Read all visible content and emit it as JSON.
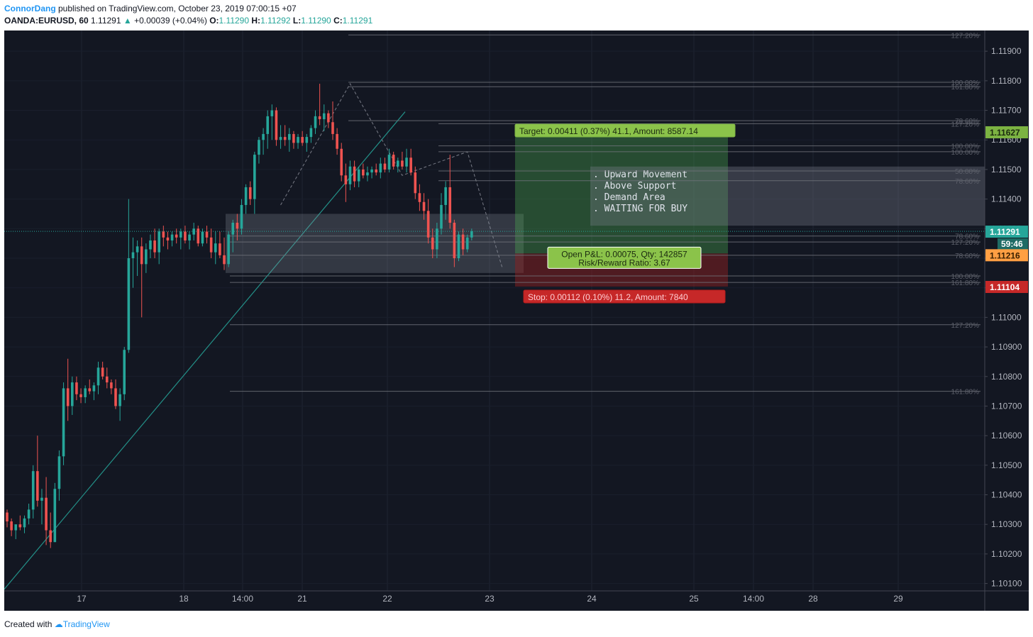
{
  "header": {
    "author": "ConnorDang",
    "published_text": "published on TradingView.com, October 23, 2019 07:00:15 +07",
    "symbol": "OANDA:EURUSD, 60",
    "last": "1.11291",
    "change": "+0.00039 (+0.04%)",
    "open_label": "O:",
    "open": "1.11290",
    "high_label": "H:",
    "high": "1.11292",
    "low_label": "L:",
    "low": "1.11290",
    "close_label": "C:",
    "close": "1.11291"
  },
  "footer": {
    "created_with": "Created with",
    "brand": "TradingView"
  },
  "colors": {
    "background": "#131722",
    "up": "#26a69a",
    "down": "#ef5350",
    "target_zone": "#4caf50",
    "stop_zone": "#8b1f1f",
    "grid_line": "#6f727a",
    "price_label_current": "#26a69a",
    "price_label_target": "#7cb342",
    "price_label_entry": "#ff9f43",
    "price_label_stop": "#c62828"
  },
  "chart_data": {
    "type": "candlestick",
    "y_axis": {
      "ticks": [
        "1.11900",
        "1.11800",
        "1.11700",
        "1.11600",
        "1.11500",
        "1.11400",
        "1.11300",
        "1.11200",
        "1.11100",
        "1.11000",
        "1.10900",
        "1.10800",
        "1.10700",
        "1.10600",
        "1.10500",
        "1.10400",
        "1.10300",
        "1.10200",
        "1.10100"
      ],
      "range": [
        1.10075,
        1.1197
      ]
    },
    "x_axis": {
      "ticks": [
        "17",
        "18",
        "14:00",
        "21",
        "22",
        "23",
        "24",
        "25",
        "14:00",
        "28",
        "29"
      ]
    },
    "price_labels": {
      "current": "1.11291",
      "countdown": "59:46",
      "target": "1.11627",
      "entry": "1.11216",
      "stop": "1.11104"
    },
    "fib_levels": [
      {
        "label": "127.20%",
        "price": 1.11955
      },
      {
        "label": "100.00%",
        "price": 1.11795
      },
      {
        "label": "161.80%",
        "price": 1.1178
      },
      {
        "label": "78.60%",
        "price": 1.11665
      },
      {
        "label": "127.20%",
        "price": 1.11655
      },
      {
        "label": "100.00%",
        "price": 1.1158
      },
      {
        "label": "100.00%",
        "price": 1.1156
      },
      {
        "label": "50.00%",
        "price": 1.11495
      },
      {
        "label": "78.60%",
        "price": 1.11462
      },
      {
        "label": "78.60%",
        "price": 1.11275
      },
      {
        "label": "127.20%",
        "price": 1.11255
      },
      {
        "label": "78.60%",
        "price": 1.1121
      },
      {
        "label": "100.00%",
        "price": 1.1114
      },
      {
        "label": "161.80%",
        "price": 1.11118
      },
      {
        "label": "127.20%",
        "price": 1.10975
      },
      {
        "label": "161.80%",
        "price": 1.1075
      }
    ],
    "position": {
      "target_text": "Target: 0.00411 (0.37%) 41.1, Amount: 8587.14",
      "pnl_text": "Open P&L: 0.00075, Qty: 142857",
      "rr_text": "Risk/Reward Ratio: 3.67",
      "stop_text": "Stop: 0.00112 (0.10%) 11.2, Amount: 7840",
      "target_price": 1.11627,
      "entry_price": 1.11216,
      "stop_price": 1.11104
    },
    "notes": [
      ". Upward Movement",
      ". Above Support",
      ". Demand Area",
      ". WAITING FOR BUY"
    ],
    "candles": [
      [
        1.1034,
        1.1035,
        1.1029,
        1.1031
      ],
      [
        1.1031,
        1.1032,
        1.1026,
        1.1028
      ],
      [
        1.1028,
        1.103,
        1.1025,
        1.103
      ],
      [
        1.103,
        1.1033,
        1.1028,
        1.1029
      ],
      [
        1.1029,
        1.1033,
        1.1027,
        1.1032
      ],
      [
        1.1032,
        1.1037,
        1.103,
        1.1035
      ],
      [
        1.1035,
        1.105,
        1.1032,
        1.1048
      ],
      [
        1.1048,
        1.106,
        1.1036,
        1.1038
      ],
      [
        1.1038,
        1.1042,
        1.103,
        1.1039
      ],
      [
        1.1039,
        1.1046,
        1.1023,
        1.1028
      ],
      [
        1.1028,
        1.1034,
        1.1022,
        1.1024
      ],
      [
        1.1024,
        1.1044,
        1.1024,
        1.1042
      ],
      [
        1.1042,
        1.1055,
        1.1038,
        1.1053
      ],
      [
        1.1053,
        1.1078,
        1.105,
        1.1076
      ],
      [
        1.1076,
        1.1086,
        1.1065,
        1.107
      ],
      [
        1.107,
        1.108,
        1.1067,
        1.1078
      ],
      [
        1.1078,
        1.108,
        1.1072,
        1.1074
      ],
      [
        1.1074,
        1.1076,
        1.1071,
        1.1073
      ],
      [
        1.1073,
        1.1077,
        1.1071,
        1.1076
      ],
      [
        1.1076,
        1.1079,
        1.1074,
        1.1075
      ],
      [
        1.1075,
        1.1078,
        1.1072,
        1.1077
      ],
      [
        1.1077,
        1.1085,
        1.1074,
        1.1083
      ],
      [
        1.1083,
        1.1085,
        1.1079,
        1.108
      ],
      [
        1.108,
        1.1083,
        1.1076,
        1.1078
      ],
      [
        1.1078,
        1.1079,
        1.1074,
        1.1076
      ],
      [
        1.1076,
        1.1079,
        1.1069,
        1.107
      ],
      [
        1.107,
        1.1076,
        1.1065,
        1.1074
      ],
      [
        1.1074,
        1.109,
        1.1072,
        1.1089
      ],
      [
        1.1089,
        1.114,
        1.1088,
        1.112
      ],
      [
        1.112,
        1.1127,
        1.111,
        1.1122
      ],
      [
        1.1122,
        1.1126,
        1.1114,
        1.1124
      ],
      [
        1.1124,
        1.1127,
        1.11,
        1.1118
      ],
      [
        1.1118,
        1.1125,
        1.1115,
        1.1123
      ],
      [
        1.1123,
        1.1128,
        1.112,
        1.1126
      ],
      [
        1.1126,
        1.113,
        1.112,
        1.1122
      ],
      [
        1.1122,
        1.113,
        1.1118,
        1.1129
      ],
      [
        1.1129,
        1.1131,
        1.1124,
        1.1127
      ],
      [
        1.1127,
        1.1129,
        1.1123,
        1.1126
      ],
      [
        1.1126,
        1.1129,
        1.1124,
        1.1128
      ],
      [
        1.1128,
        1.113,
        1.1125,
        1.1127
      ],
      [
        1.1127,
        1.113,
        1.1123,
        1.1129
      ],
      [
        1.1129,
        1.1131,
        1.1125,
        1.1126
      ],
      [
        1.1126,
        1.1129,
        1.1123,
        1.1128
      ],
      [
        1.1128,
        1.1132,
        1.1126,
        1.113
      ],
      [
        1.113,
        1.1131,
        1.1124,
        1.1125
      ],
      [
        1.1125,
        1.113,
        1.1124,
        1.1129
      ],
      [
        1.1129,
        1.1131,
        1.1125,
        1.1127
      ],
      [
        1.1127,
        1.113,
        1.112,
        1.1122
      ],
      [
        1.1122,
        1.1129,
        1.1118,
        1.1125
      ],
      [
        1.1125,
        1.1129,
        1.112,
        1.1121
      ],
      [
        1.1121,
        1.1127,
        1.1116,
        1.1118
      ],
      [
        1.1118,
        1.1129,
        1.1117,
        1.1128
      ],
      [
        1.1128,
        1.1133,
        1.1122,
        1.1132
      ],
      [
        1.1132,
        1.1135,
        1.1126,
        1.113
      ],
      [
        1.113,
        1.114,
        1.1128,
        1.1138
      ],
      [
        1.1138,
        1.1145,
        1.1135,
        1.1144
      ],
      [
        1.1144,
        1.1146,
        1.1138,
        1.114
      ],
      [
        1.114,
        1.1156,
        1.1135,
        1.1155
      ],
      [
        1.1155,
        1.1161,
        1.1152,
        1.116
      ],
      [
        1.116,
        1.1164,
        1.1155,
        1.1162
      ],
      [
        1.1162,
        1.117,
        1.1157,
        1.1168
      ],
      [
        1.1168,
        1.1172,
        1.116,
        1.117
      ],
      [
        1.117,
        1.1171,
        1.1158,
        1.116
      ],
      [
        1.116,
        1.1165,
        1.1157,
        1.1161
      ],
      [
        1.1161,
        1.1165,
        1.1158,
        1.116
      ],
      [
        1.116,
        1.1164,
        1.1156,
        1.1162
      ],
      [
        1.1162,
        1.1163,
        1.1157,
        1.1159
      ],
      [
        1.1159,
        1.1162,
        1.1157,
        1.1161
      ],
      [
        1.1161,
        1.1163,
        1.1158,
        1.1159
      ],
      [
        1.1159,
        1.1162,
        1.1156,
        1.1161
      ],
      [
        1.1161,
        1.1165,
        1.1159,
        1.1164
      ],
      [
        1.1164,
        1.117,
        1.1162,
        1.1168
      ],
      [
        1.1168,
        1.1179,
        1.1165,
        1.1167
      ],
      [
        1.1167,
        1.1172,
        1.1163,
        1.1169
      ],
      [
        1.1169,
        1.117,
        1.1164,
        1.1166
      ],
      [
        1.1166,
        1.1173,
        1.116,
        1.1162
      ],
      [
        1.1162,
        1.1164,
        1.1155,
        1.1157
      ],
      [
        1.1157,
        1.1159,
        1.1146,
        1.1148
      ],
      [
        1.1148,
        1.1152,
        1.1139,
        1.1145
      ],
      [
        1.1145,
        1.1153,
        1.1143,
        1.1151
      ],
      [
        1.1151,
        1.1153,
        1.1144,
        1.1146
      ],
      [
        1.1146,
        1.1151,
        1.1144,
        1.115
      ],
      [
        1.115,
        1.1152,
        1.1147,
        1.1148
      ],
      [
        1.1148,
        1.1151,
        1.1146,
        1.1149
      ],
      [
        1.1149,
        1.1151,
        1.1147,
        1.115
      ],
      [
        1.115,
        1.1152,
        1.1148,
        1.1149
      ],
      [
        1.1149,
        1.1154,
        1.1147,
        1.1152
      ],
      [
        1.1152,
        1.1154,
        1.1149,
        1.115
      ],
      [
        1.115,
        1.1157,
        1.1149,
        1.1155
      ],
      [
        1.1155,
        1.1156,
        1.115,
        1.1151
      ],
      [
        1.1151,
        1.1154,
        1.1149,
        1.1153
      ],
      [
        1.1153,
        1.1156,
        1.115,
        1.1151
      ],
      [
        1.1151,
        1.1157,
        1.1149,
        1.1154
      ],
      [
        1.1154,
        1.1157,
        1.1148,
        1.1149
      ],
      [
        1.1149,
        1.1151,
        1.114,
        1.1142
      ],
      [
        1.1142,
        1.1145,
        1.1136,
        1.1139
      ],
      [
        1.1139,
        1.1142,
        1.1133,
        1.1136
      ],
      [
        1.1136,
        1.114,
        1.1125,
        1.1127
      ],
      [
        1.1127,
        1.113,
        1.112,
        1.1123
      ],
      [
        1.1123,
        1.1132,
        1.112,
        1.113
      ],
      [
        1.113,
        1.1142,
        1.1128,
        1.1138
      ],
      [
        1.1138,
        1.1146,
        1.1133,
        1.1144
      ],
      [
        1.1144,
        1.1155,
        1.113,
        1.1132
      ],
      [
        1.1132,
        1.1133,
        1.1117,
        1.112
      ],
      [
        1.112,
        1.1129,
        1.1119,
        1.1128
      ],
      [
        1.1128,
        1.113,
        1.1121,
        1.1123
      ],
      [
        1.1123,
        1.1128,
        1.1122,
        1.1127
      ],
      [
        1.1127,
        1.113,
        1.1126,
        1.11291
      ]
    ]
  }
}
